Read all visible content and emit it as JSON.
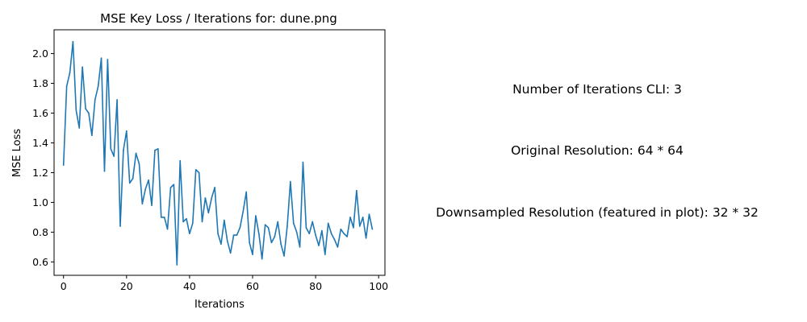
{
  "info": {
    "line1": "Number of Iterations CLI: 3",
    "line2": "Original Resolution: 64 * 64",
    "line3": "Downsampled Resolution (featured in plot): 32 * 32"
  },
  "chart_data": {
    "type": "line",
    "title": "MSE Key Loss / Iterations for: dune.png",
    "xlabel": "Iterations",
    "ylabel": "MSE Loss",
    "xlim": [
      -3,
      102
    ],
    "ylim": [
      0.51,
      2.16
    ],
    "xticks": [
      0,
      20,
      40,
      60,
      80,
      100
    ],
    "yticks": [
      0.6,
      0.8,
      1.0,
      1.2,
      1.4,
      1.6,
      1.8,
      2.0
    ],
    "xtick_labels": [
      "0",
      "20",
      "40",
      "60",
      "80",
      "100"
    ],
    "ytick_labels": [
      "0.6",
      "0.8",
      "1.0",
      "1.2",
      "1.4",
      "1.6",
      "1.8",
      "2.0"
    ],
    "grid": false,
    "series": [
      {
        "color": "#1f77b4",
        "x": [
          0,
          1,
          2,
          3,
          4,
          5,
          6,
          7,
          8,
          9,
          10,
          11,
          12,
          13,
          14,
          15,
          16,
          17,
          18,
          19,
          20,
          21,
          22,
          23,
          24,
          25,
          26,
          27,
          28,
          29,
          30,
          31,
          32,
          33,
          34,
          35,
          36,
          37,
          38,
          39,
          40,
          41,
          42,
          43,
          44,
          45,
          46,
          47,
          48,
          49,
          50,
          51,
          52,
          53,
          54,
          55,
          56,
          57,
          58,
          59,
          60,
          61,
          62,
          63,
          64,
          65,
          66,
          67,
          68,
          69,
          70,
          71,
          72,
          73,
          74,
          75,
          76,
          77,
          78,
          79,
          80,
          81,
          82,
          83,
          84,
          85,
          86,
          87,
          88,
          89,
          90,
          91,
          92,
          93,
          94,
          95,
          96,
          97,
          98
        ],
        "y": [
          1.25,
          1.78,
          1.87,
          2.08,
          1.62,
          1.5,
          1.91,
          1.63,
          1.6,
          1.45,
          1.69,
          1.78,
          1.97,
          1.21,
          1.96,
          1.36,
          1.31,
          1.69,
          0.84,
          1.35,
          1.48,
          1.13,
          1.16,
          1.33,
          1.26,
          0.99,
          1.09,
          1.15,
          0.98,
          1.35,
          1.36,
          0.9,
          0.9,
          0.82,
          1.1,
          1.12,
          0.58,
          1.28,
          0.87,
          0.89,
          0.79,
          0.86,
          1.22,
          1.2,
          0.87,
          1.03,
          0.93,
          1.03,
          1.1,
          0.79,
          0.72,
          0.88,
          0.74,
          0.66,
          0.78,
          0.78,
          0.83,
          0.94,
          1.07,
          0.73,
          0.65,
          0.91,
          0.79,
          0.62,
          0.85,
          0.83,
          0.73,
          0.77,
          0.87,
          0.72,
          0.64,
          0.84,
          1.14,
          0.86,
          0.8,
          0.7,
          1.27,
          0.83,
          0.79,
          0.87,
          0.78,
          0.71,
          0.81,
          0.65,
          0.86,
          0.79,
          0.75,
          0.7,
          0.82,
          0.79,
          0.77,
          0.9,
          0.83,
          1.08,
          0.84,
          0.9,
          0.76,
          0.92,
          0.82
        ]
      }
    ]
  }
}
